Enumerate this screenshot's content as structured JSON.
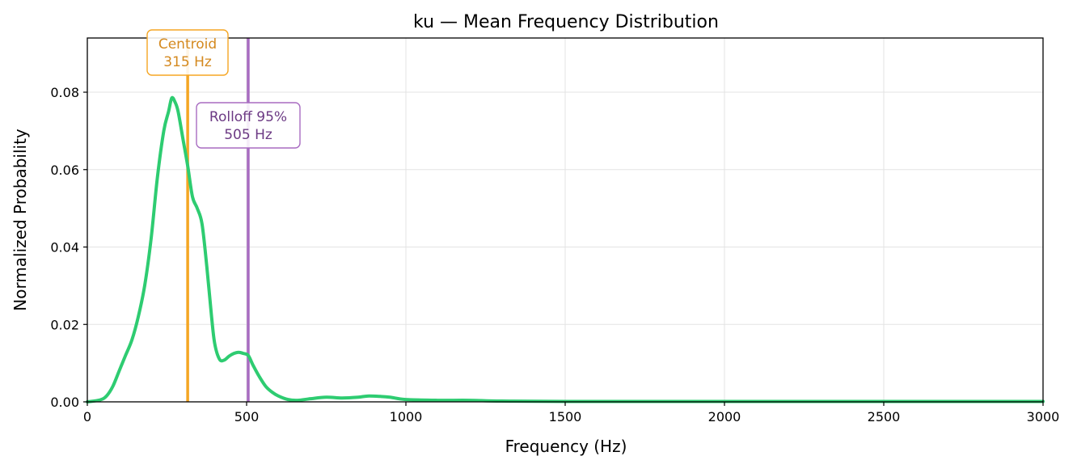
{
  "chart_data": {
    "type": "line",
    "title": "ku  —  Mean Frequency Distribution",
    "xlabel": "Frequency (Hz)",
    "ylabel": "Normalized Probability",
    "xlim": [
      0,
      3000
    ],
    "ylim": [
      0,
      0.094
    ],
    "x_ticks": [
      0,
      500,
      1000,
      1500,
      2000,
      2500,
      3000
    ],
    "x_tick_labels": [
      "0",
      "500",
      "1000",
      "1500",
      "2000",
      "2500",
      "3000"
    ],
    "y_ticks": [
      0,
      0.02,
      0.04,
      0.06,
      0.08
    ],
    "y_tick_labels": [
      "0.00",
      "0.02",
      "0.04",
      "0.06",
      "0.08"
    ],
    "grid": true,
    "series": [
      {
        "color": "#2ecc71",
        "x": [
          0,
          40,
          60,
          80,
          100,
          120,
          140,
          160,
          180,
          200,
          220,
          240,
          255,
          265,
          275,
          285,
          300,
          315,
          330,
          345,
          360,
          375,
          390,
          400,
          415,
          430,
          445,
          460,
          475,
          490,
          505,
          520,
          540,
          560,
          580,
          600,
          630,
          660,
          700,
          750,
          800,
          850,
          880,
          920,
          950,
          1000,
          1100,
          1200,
          1300,
          1500,
          2000,
          2500,
          3000
        ],
        "y": [
          0,
          0.0005,
          0.0015,
          0.004,
          0.008,
          0.012,
          0.016,
          0.022,
          0.03,
          0.042,
          0.058,
          0.07,
          0.075,
          0.0785,
          0.0775,
          0.075,
          0.068,
          0.061,
          0.053,
          0.05,
          0.046,
          0.035,
          0.022,
          0.015,
          0.011,
          0.0108,
          0.0118,
          0.0125,
          0.0128,
          0.0125,
          0.012,
          0.0095,
          0.0065,
          0.004,
          0.0025,
          0.0015,
          0.0006,
          0.0004,
          0.0008,
          0.0012,
          0.001,
          0.0012,
          0.0015,
          0.0014,
          0.0012,
          0.0006,
          0.0004,
          0.0004,
          0.0002,
          0.0001,
          0.0001,
          0.0001,
          0.0001
        ]
      }
    ],
    "annotations": [
      {
        "id": "centroid",
        "line_x": 315,
        "color": "#f5a623",
        "text_color": "#d4891f",
        "lines": [
          "Centroid",
          "315 Hz"
        ]
      },
      {
        "id": "rolloff",
        "line_x": 505,
        "color": "#a86cc1",
        "text_color": "#6c3a84",
        "lines": [
          "Rolloff 95%",
          "505 Hz"
        ]
      }
    ]
  }
}
